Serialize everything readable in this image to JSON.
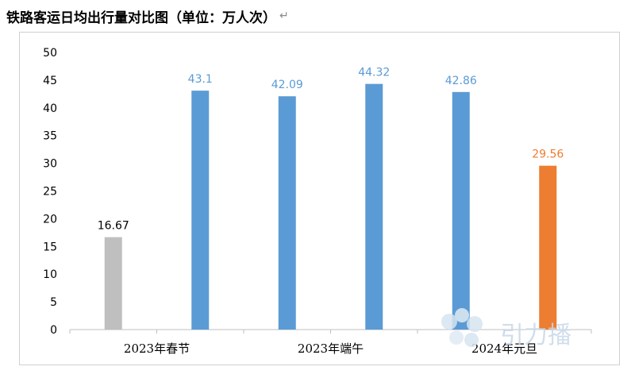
{
  "title": "铁路客运日均出行量对比图（单位：万人次）",
  "return_mark": "↵",
  "watermark": "引力播",
  "chart_data": {
    "type": "bar",
    "title": "铁路客运日均出行量对比图（单位：万人次）",
    "ylim": [
      0,
      50
    ],
    "yticks": [
      0,
      5,
      10,
      15,
      20,
      25,
      30,
      35,
      40,
      45,
      50
    ],
    "grid": false,
    "legend": "none",
    "category_labels": [
      "2023年春节",
      "2023年端午",
      "2024年元旦"
    ],
    "bars": [
      {
        "value": 16.67,
        "color": "#bfbfbf",
        "label_color": "#000000"
      },
      {
        "value": 43.1,
        "color": "#5b9bd5",
        "label_color": "#5b9bd5"
      },
      {
        "value": 42.09,
        "color": "#5b9bd5",
        "label_color": "#5b9bd5"
      },
      {
        "value": 44.32,
        "color": "#5b9bd5",
        "label_color": "#5b9bd5"
      },
      {
        "value": 42.86,
        "color": "#5b9bd5",
        "label_color": "#5b9bd5"
      },
      {
        "value": 29.56,
        "color": "#ed7d31",
        "label_color": "#ed7d31"
      }
    ]
  }
}
